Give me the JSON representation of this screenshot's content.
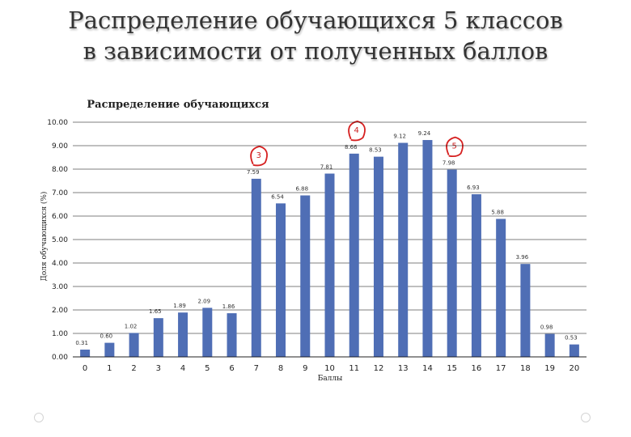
{
  "slide": {
    "title_line1": "Распределение обучающихся 5 классов",
    "title_line2": "в зависимости от полученных баллов"
  },
  "colors": {
    "bar": "#4f6eb5",
    "grade_marker": "#d62020",
    "grid": "#000000"
  },
  "chart_data": {
    "type": "bar",
    "title": "Распределение обучающихся",
    "xlabel": "Баллы",
    "ylabel": "Доля обучающихся (%)",
    "ylim": [
      0,
      10
    ],
    "yticks": [
      "0.00",
      "1.00",
      "2.00",
      "3.00",
      "4.00",
      "5.00",
      "6.00",
      "7.00",
      "8.00",
      "9.00",
      "10.00"
    ],
    "categories": [
      "0",
      "1",
      "2",
      "3",
      "4",
      "5",
      "6",
      "7",
      "8",
      "9",
      "10",
      "11",
      "12",
      "13",
      "14",
      "15",
      "16",
      "17",
      "18",
      "19",
      "20"
    ],
    "values": [
      0.31,
      0.6,
      1.02,
      1.65,
      1.89,
      2.09,
      1.86,
      7.59,
      6.54,
      6.88,
      7.81,
      8.66,
      8.53,
      9.12,
      9.24,
      7.98,
      6.93,
      5.88,
      3.96,
      0.98,
      0.53
    ],
    "labels": [
      "0.31",
      "0.60",
      "1.02",
      "1.65",
      "1.89",
      "2.09",
      "1.86",
      "7.59",
      "6.54",
      "6.88",
      "7.81",
      "8.66",
      "8.53",
      "9.12",
      "9.24",
      "7.98",
      "6.93",
      "5.88",
      "3.96",
      "0.98",
      "0.53"
    ],
    "annotations": [
      {
        "text": "3",
        "category": "7"
      },
      {
        "text": "4",
        "category": "11"
      },
      {
        "text": "5",
        "category": "15"
      }
    ]
  }
}
